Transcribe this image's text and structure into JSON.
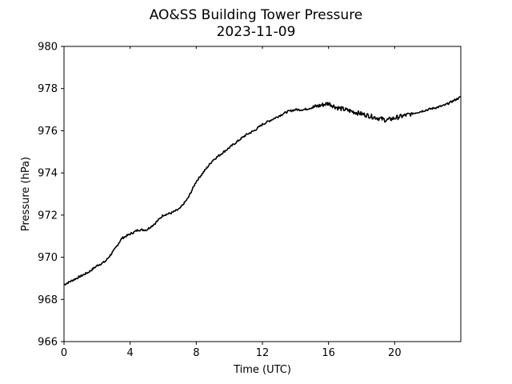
{
  "chart_data": {
    "type": "line",
    "title": "AO&SS Building Tower Pressure",
    "subtitle": "2023-11-09",
    "xlabel": "Time (UTC)",
    "ylabel": "Pressure (hPa)",
    "xlim": [
      0,
      24
    ],
    "ylim": [
      966,
      980
    ],
    "xticks": [
      0,
      4,
      8,
      12,
      16,
      20
    ],
    "yticks": [
      966,
      968,
      970,
      972,
      974,
      976,
      978,
      980
    ],
    "grid": false,
    "legend": "none",
    "line_color": "#000000",
    "series": [
      {
        "x": [
          0,
          0.5,
          1,
          1.5,
          2,
          2.5,
          3,
          3.5,
          4,
          4.5,
          5,
          5.5,
          6,
          6.5,
          7,
          7.5,
          8,
          8.5,
          9,
          9.5,
          10,
          10.5,
          11,
          11.5,
          12,
          12.5,
          13,
          13.5,
          14,
          14.5,
          15,
          15.5,
          16,
          16.5,
          17,
          17.5,
          18,
          18.5,
          19,
          19.5,
          20,
          20.5,
          21,
          21.5,
          22,
          22.5,
          23,
          23.5,
          24
        ],
        "y": [
          968.7,
          968.9,
          969.1,
          969.3,
          969.6,
          969.8,
          970.3,
          970.9,
          971.1,
          971.3,
          971.3,
          971.6,
          972.0,
          972.1,
          972.3,
          972.8,
          973.6,
          974.1,
          974.6,
          974.9,
          975.2,
          975.5,
          975.8,
          976.0,
          976.3,
          976.5,
          976.7,
          976.9,
          977.0,
          977.0,
          977.1,
          977.2,
          977.3,
          977.1,
          977.0,
          976.9,
          976.8,
          976.7,
          976.6,
          976.5,
          976.6,
          976.7,
          976.8,
          976.9,
          977.0,
          977.1,
          977.2,
          977.4,
          977.6
        ]
      }
    ]
  }
}
